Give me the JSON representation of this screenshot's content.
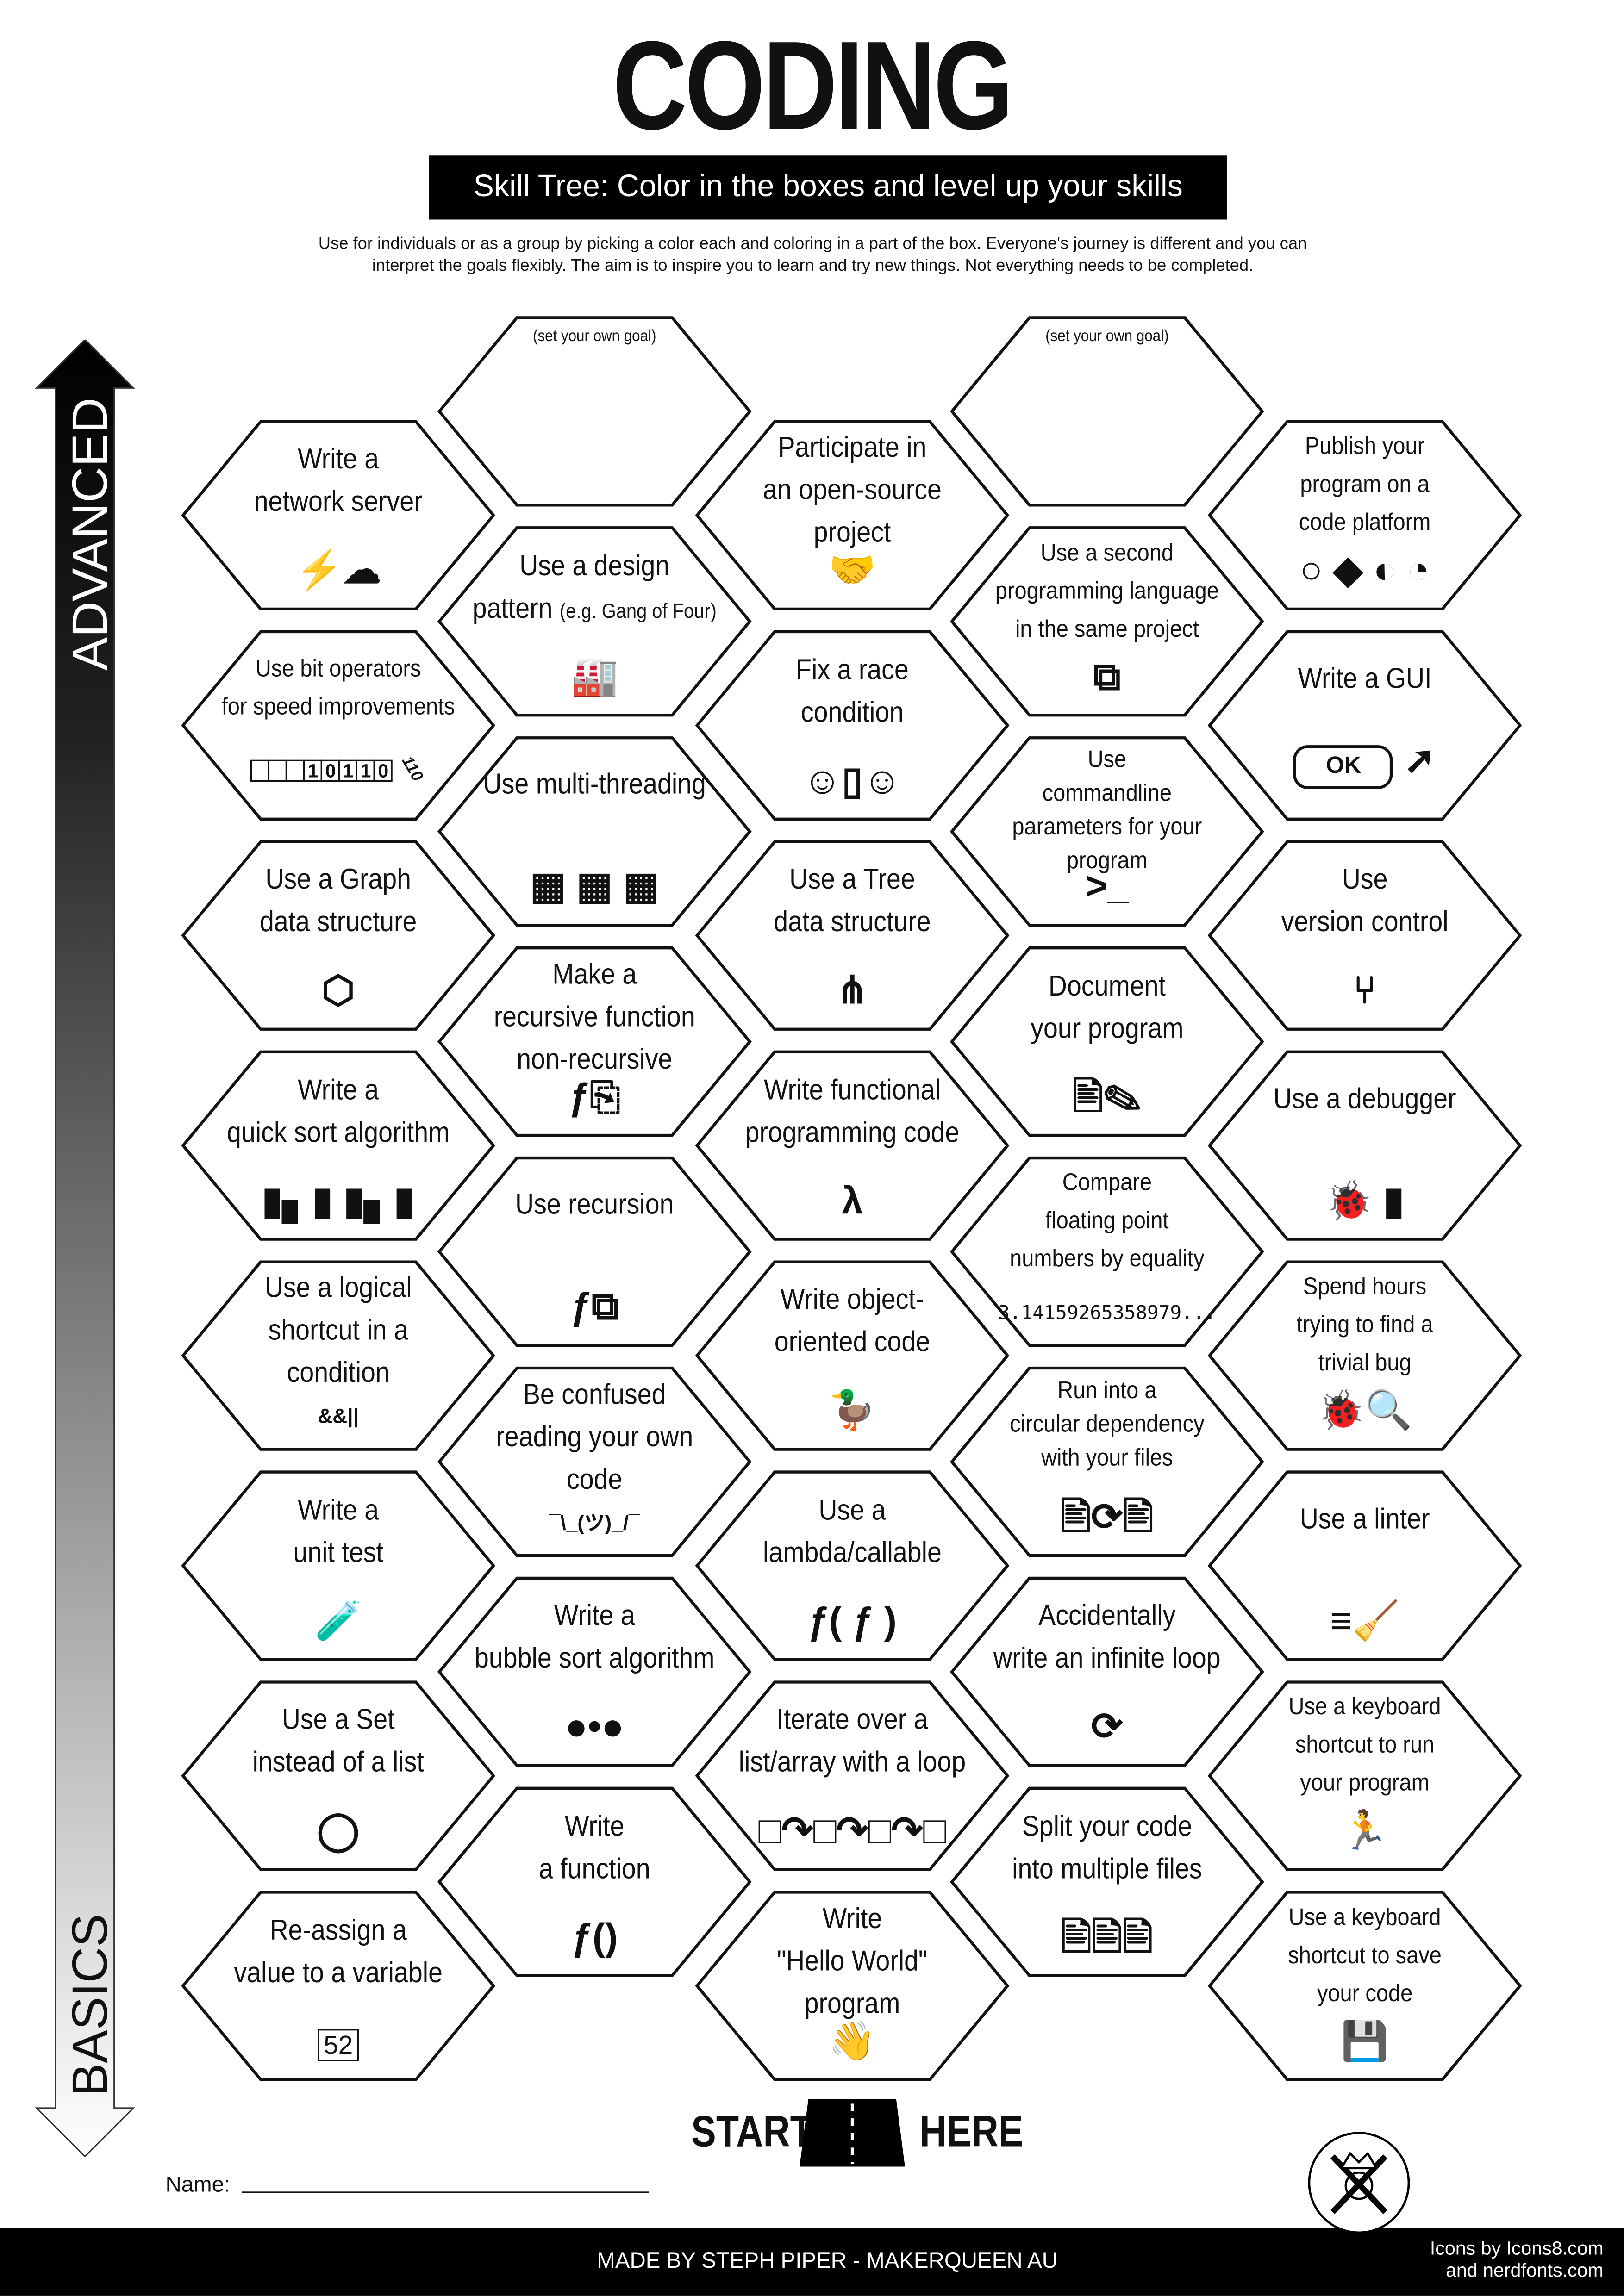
{
  "header": {
    "title": "CODING",
    "subtitle": "Skill Tree:  Color in the boxes and level up your skills",
    "intro_line1": "Use for individuals or as a group by picking a color each and coloring in a part of the box.  Everyone's journey is different and you can",
    "intro_line2": "interpret the goals flexibly.  The aim is to inspire you to learn and try new things. Not everything needs to be completed."
  },
  "progress_arrow": {
    "top_label": "ADVANCED",
    "bottom_label": "BASICS",
    "gradient": [
      "#000000",
      "#ffffff"
    ]
  },
  "columns": [
    [
      {
        "lines": [
          "Write a",
          "network server"
        ],
        "icon": "plug-cloud-icon"
      },
      {
        "lines": [
          "Use bit operators",
          "for speed improvements"
        ],
        "icon": "bit-shift-icon",
        "small": true,
        "bits": [
          "",
          "",
          "",
          "1",
          "0",
          "1",
          "1",
          "0"
        ],
        "shifted": "110"
      },
      {
        "lines": [
          "Use a Graph",
          "data structure"
        ],
        "icon": "graph-icon"
      },
      {
        "lines": [
          "Write a",
          "quick sort algorithm"
        ],
        "icon": "bar-sort-icon"
      },
      {
        "lines": [
          "Use a logical",
          "shortcut in a",
          "condition"
        ],
        "icon": "logic-operators-icon",
        "icon_text": "&&||"
      },
      {
        "lines": [
          "Write a",
          "unit test"
        ],
        "icon": "test-tube-icon"
      },
      {
        "lines": [
          "Use a Set",
          "instead of a list"
        ],
        "icon": "set-icon"
      },
      {
        "lines": [
          "Re-assign a",
          "value to a variable"
        ],
        "icon": "variable-swap-icon",
        "icon_text": "52"
      }
    ],
    [
      {
        "goal": "(set your own goal)"
      },
      {
        "lines": [
          "Use a design",
          "pattern"
        ],
        "sub": "(e.g. Gang of Four)",
        "icon": "factory-icon"
      },
      {
        "lines": [
          "Use multi-threading"
        ],
        "icon": "cpu-chips-icon"
      },
      {
        "lines": [
          "Make a",
          "recursive function",
          "non-recursive"
        ],
        "icon": "function-cards-icon"
      },
      {
        "lines": [
          "Use recursion"
        ],
        "icon": "recursion-icon"
      },
      {
        "lines": [
          "Be confused",
          "reading your own",
          "code"
        ],
        "icon": "shrug-icon",
        "icon_text": "¯\\_(ツ)_/¯"
      },
      {
        "lines": [
          "Write a",
          "bubble sort algorithm"
        ],
        "icon": "bubbles-icon"
      },
      {
        "lines": [
          "Write",
          "a function"
        ],
        "icon": "function-icon",
        "icon_text": "ƒ()"
      }
    ],
    [
      {
        "lines": [
          "Participate in",
          "an open-source",
          "project"
        ],
        "icon": "handshake-icon"
      },
      {
        "lines": [
          "Fix a race",
          "condition"
        ],
        "icon": "race-door-icon"
      },
      {
        "lines": [
          "Use a Tree",
          "data structure"
        ],
        "icon": "tree-icon"
      },
      {
        "lines": [
          "Write functional",
          "programming code"
        ],
        "icon": "lambda-icon",
        "icon_text": "λ"
      },
      {
        "lines": [
          "Write object-",
          "oriented code"
        ],
        "icon": "duck-icon"
      },
      {
        "lines": [
          "Use a",
          "lambda/callable"
        ],
        "icon": "callable-icon",
        "icon_text": "ƒ( ƒ )"
      },
      {
        "lines": [
          "Iterate over a",
          "list/array with a loop"
        ],
        "icon": "loop-boxes-icon"
      },
      {
        "lines": [
          "Write",
          "\"Hello World\"",
          "program"
        ],
        "icon": "waving-hand-icon"
      }
    ],
    [
      {
        "goal": "(set your own goal)"
      },
      {
        "lines": [
          "Use a second",
          "programming language",
          "in the same project"
        ],
        "icon": "languages-icon",
        "small": true
      },
      {
        "lines": [
          "Use",
          "commandline",
          "parameters for your",
          "program"
        ],
        "icon": "terminal-icon",
        "icon_text": ">_",
        "small": true,
        "tight": true
      },
      {
        "lines": [
          "Document",
          "your program"
        ],
        "icon": "document-pen-icon"
      },
      {
        "lines": [
          "Compare",
          "floating point",
          "numbers by equality"
        ],
        "icon": "pi-digits-icon",
        "icon_text": "3.14159265358979...",
        "small": true
      },
      {
        "lines": [
          "Run into a",
          "circular dependency",
          "with your files"
        ],
        "icon": "circular-files-icon",
        "small": true,
        "tight": true
      },
      {
        "lines": [
          "Accidentally",
          "write an infinite loop"
        ],
        "icon": "refresh-loop-icon"
      },
      {
        "lines": [
          "Split your code",
          "into multiple files"
        ],
        "icon": "multiple-files-icon"
      }
    ],
    [
      {
        "lines": [
          "Publish your",
          "program on a",
          "code platform"
        ],
        "icon": "code-platforms-icon",
        "small": true
      },
      {
        "lines": [
          "Write a GUI"
        ],
        "icon": "ok-button-cursor-icon",
        "icon_text": "OK"
      },
      {
        "lines": [
          "Use",
          "version control"
        ],
        "icon": "git-branch-icon"
      },
      {
        "lines": [
          "Use a debugger"
        ],
        "icon": "bug-spray-icon"
      },
      {
        "lines": [
          "Spend hours",
          "trying to find a",
          "trivial bug"
        ],
        "icon": "bug-search-icon",
        "small": true
      },
      {
        "lines": [
          "Use a linter"
        ],
        "icon": "broom-icon"
      },
      {
        "lines": [
          "Use a keyboard",
          "shortcut to run",
          "your program"
        ],
        "icon": "running-person-icon",
        "small": true
      },
      {
        "lines": [
          "Use a keyboard",
          "shortcut to save",
          "your code"
        ],
        "icon": "floppy-disk-icon",
        "small": true
      }
    ]
  ],
  "start": {
    "left": "START",
    "right": "HERE",
    "icon": "road-icon"
  },
  "name_label": "Name:",
  "footer": {
    "made_by": "MADE BY STEPH PIPER  -  MAKERQUEEN AU",
    "credits_line1": "Icons by Icons8.com",
    "credits_line2": "and nerdfonts.com",
    "logo": "makerqueen-logo-icon"
  }
}
